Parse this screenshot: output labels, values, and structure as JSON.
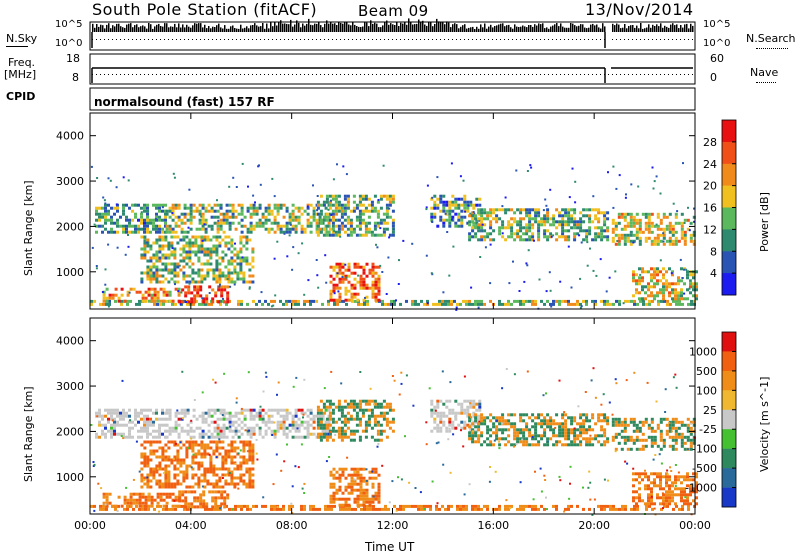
{
  "header": {
    "station": "South Pole Station (fitACF)",
    "beam": "Beam 09",
    "date": "13/Nov/2014"
  },
  "strip_labels": {
    "nsky": "N.Sky",
    "nsky_ticks": [
      "10^5",
      "10^0"
    ],
    "freq_l1": "Freq.",
    "freq_l2": "[MHz]",
    "freq_ticks": [
      "18",
      "8"
    ],
    "cpid": "CPID",
    "nsearch": "N.Search",
    "nsearch_ticks": [
      "10^5",
      "10^0"
    ],
    "nave": "Nave",
    "nave_ticks": [
      "60",
      "0"
    ]
  },
  "mode_text": "normalsound (fast) 157 RF",
  "chart_data": [
    {
      "type": "heatmap",
      "name": "power",
      "ylabel": "Slant Range [km]",
      "xlabel": "Time UT",
      "x_ticks": [
        "00:00",
        "04:00",
        "08:00",
        "12:00",
        "16:00",
        "20:00",
        "00:00"
      ],
      "y_ticks": [
        "1000",
        "2000",
        "3000",
        "4000"
      ],
      "ylim": [
        180,
        4500
      ],
      "xlim_hours": [
        0,
        24
      ],
      "colorbar_label": "Power [dB]",
      "colorbar_ticks": [
        "4",
        "8",
        "12",
        "16",
        "20",
        "24",
        "28"
      ],
      "colorbar_colors": [
        "#1c1cf0",
        "#2a54b4",
        "#2e8a6e",
        "#5cb85c",
        "#f0c020",
        "#f08a1a",
        "#f05018",
        "#e81010"
      ],
      "echo_bands": [
        {
          "t": [
            0.0,
            24.0
          ],
          "r": [
            250,
            380
          ],
          "level": 0.45
        },
        {
          "t": [
            0.5,
            3.5
          ],
          "r": [
            350,
            650
          ],
          "level": 0.7
        },
        {
          "t": [
            3.5,
            5.5
          ],
          "r": [
            350,
            700
          ],
          "level": 0.9
        },
        {
          "t": [
            0.2,
            3.0
          ],
          "r": [
            1900,
            2500
          ],
          "level": 0.35
        },
        {
          "t": [
            2.0,
            6.5
          ],
          "r": [
            800,
            1800
          ],
          "level": 0.45
        },
        {
          "t": [
            3.0,
            9.5
          ],
          "r": [
            1900,
            2500
          ],
          "level": 0.45
        },
        {
          "t": [
            9.5,
            11.5
          ],
          "r": [
            400,
            1200
          ],
          "level": 0.75
        },
        {
          "t": [
            9.0,
            12.0
          ],
          "r": [
            1800,
            2700
          ],
          "level": 0.4
        },
        {
          "t": [
            13.5,
            15.5
          ],
          "r": [
            2000,
            2700
          ],
          "level": 0.35
        },
        {
          "t": [
            15.0,
            20.5
          ],
          "r": [
            1700,
            2400
          ],
          "level": 0.45
        },
        {
          "t": [
            20.7,
            24.0
          ],
          "r": [
            1600,
            2300
          ],
          "level": 0.55
        },
        {
          "t": [
            21.5,
            24.0
          ],
          "r": [
            400,
            1100
          ],
          "level": 0.55
        }
      ]
    },
    {
      "type": "heatmap",
      "name": "velocity",
      "ylabel": "Slant Range [km]",
      "xlabel": "Time UT",
      "x_ticks": [
        "00:00",
        "04:00",
        "08:00",
        "12:00",
        "16:00",
        "20:00",
        "00:00"
      ],
      "y_ticks": [
        "1000",
        "2000",
        "3000",
        "4000"
      ],
      "ylim": [
        180,
        4500
      ],
      "xlim_hours": [
        0,
        24
      ],
      "colorbar_label": "Velocity [m s^-1]",
      "colorbar_ticks": [
        "1000",
        "500",
        "100",
        "25",
        "-25",
        "-100",
        "-500",
        "-1000"
      ],
      "colorbar_colors": [
        "#1838c8",
        "#2a6a9a",
        "#2e8a5e",
        "#44c030",
        "#c8c8c8",
        "#f0b830",
        "#f08c18",
        "#f06010",
        "#e01010"
      ],
      "echo_bands": [
        {
          "t": [
            0.0,
            24.0
          ],
          "r": [
            250,
            380
          ],
          "level": 0.45
        },
        {
          "t": [
            0.5,
            3.5
          ],
          "r": [
            350,
            650
          ],
          "level": 0.7
        },
        {
          "t": [
            3.5,
            5.5
          ],
          "r": [
            350,
            700
          ],
          "level": 0.9
        },
        {
          "t": [
            0.2,
            3.0
          ],
          "r": [
            1900,
            2500
          ],
          "level": 0.35
        },
        {
          "t": [
            2.0,
            6.5
          ],
          "r": [
            800,
            1800
          ],
          "level": 0.45
        },
        {
          "t": [
            3.0,
            9.5
          ],
          "r": [
            1900,
            2500
          ],
          "level": 0.45
        },
        {
          "t": [
            9.5,
            11.5
          ],
          "r": [
            400,
            1200
          ],
          "level": 0.75
        },
        {
          "t": [
            9.0,
            12.0
          ],
          "r": [
            1800,
            2700
          ],
          "level": 0.4
        },
        {
          "t": [
            13.5,
            15.5
          ],
          "r": [
            2000,
            2700
          ],
          "level": 0.35
        },
        {
          "t": [
            15.0,
            20.5
          ],
          "r": [
            1700,
            2400
          ],
          "level": 0.45
        },
        {
          "t": [
            20.7,
            24.0
          ],
          "r": [
            1600,
            2300
          ],
          "level": 0.55
        },
        {
          "t": [
            21.5,
            24.0
          ],
          "r": [
            400,
            1100
          ],
          "level": 0.55
        }
      ]
    }
  ]
}
